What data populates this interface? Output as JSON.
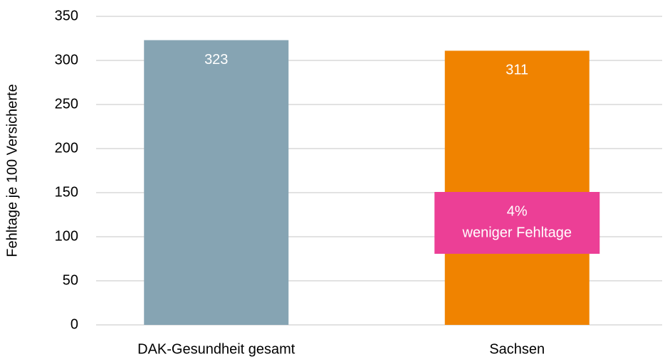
{
  "chart_data": {
    "type": "bar",
    "ylabel": "Fehltage je 100 Versicherte",
    "categories": [
      "DAK-Gesundheit gesamt",
      "Sachsen"
    ],
    "values": [
      323,
      311
    ],
    "colors": [
      "#86a4b3",
      "#f08300"
    ],
    "ylim": [
      0,
      350
    ],
    "yticks": [
      0,
      50,
      100,
      150,
      200,
      250,
      300,
      350
    ],
    "grid": true,
    "annotation": {
      "lines": [
        "4%",
        "weniger Fehltage"
      ],
      "color": "#ec3f96"
    }
  }
}
